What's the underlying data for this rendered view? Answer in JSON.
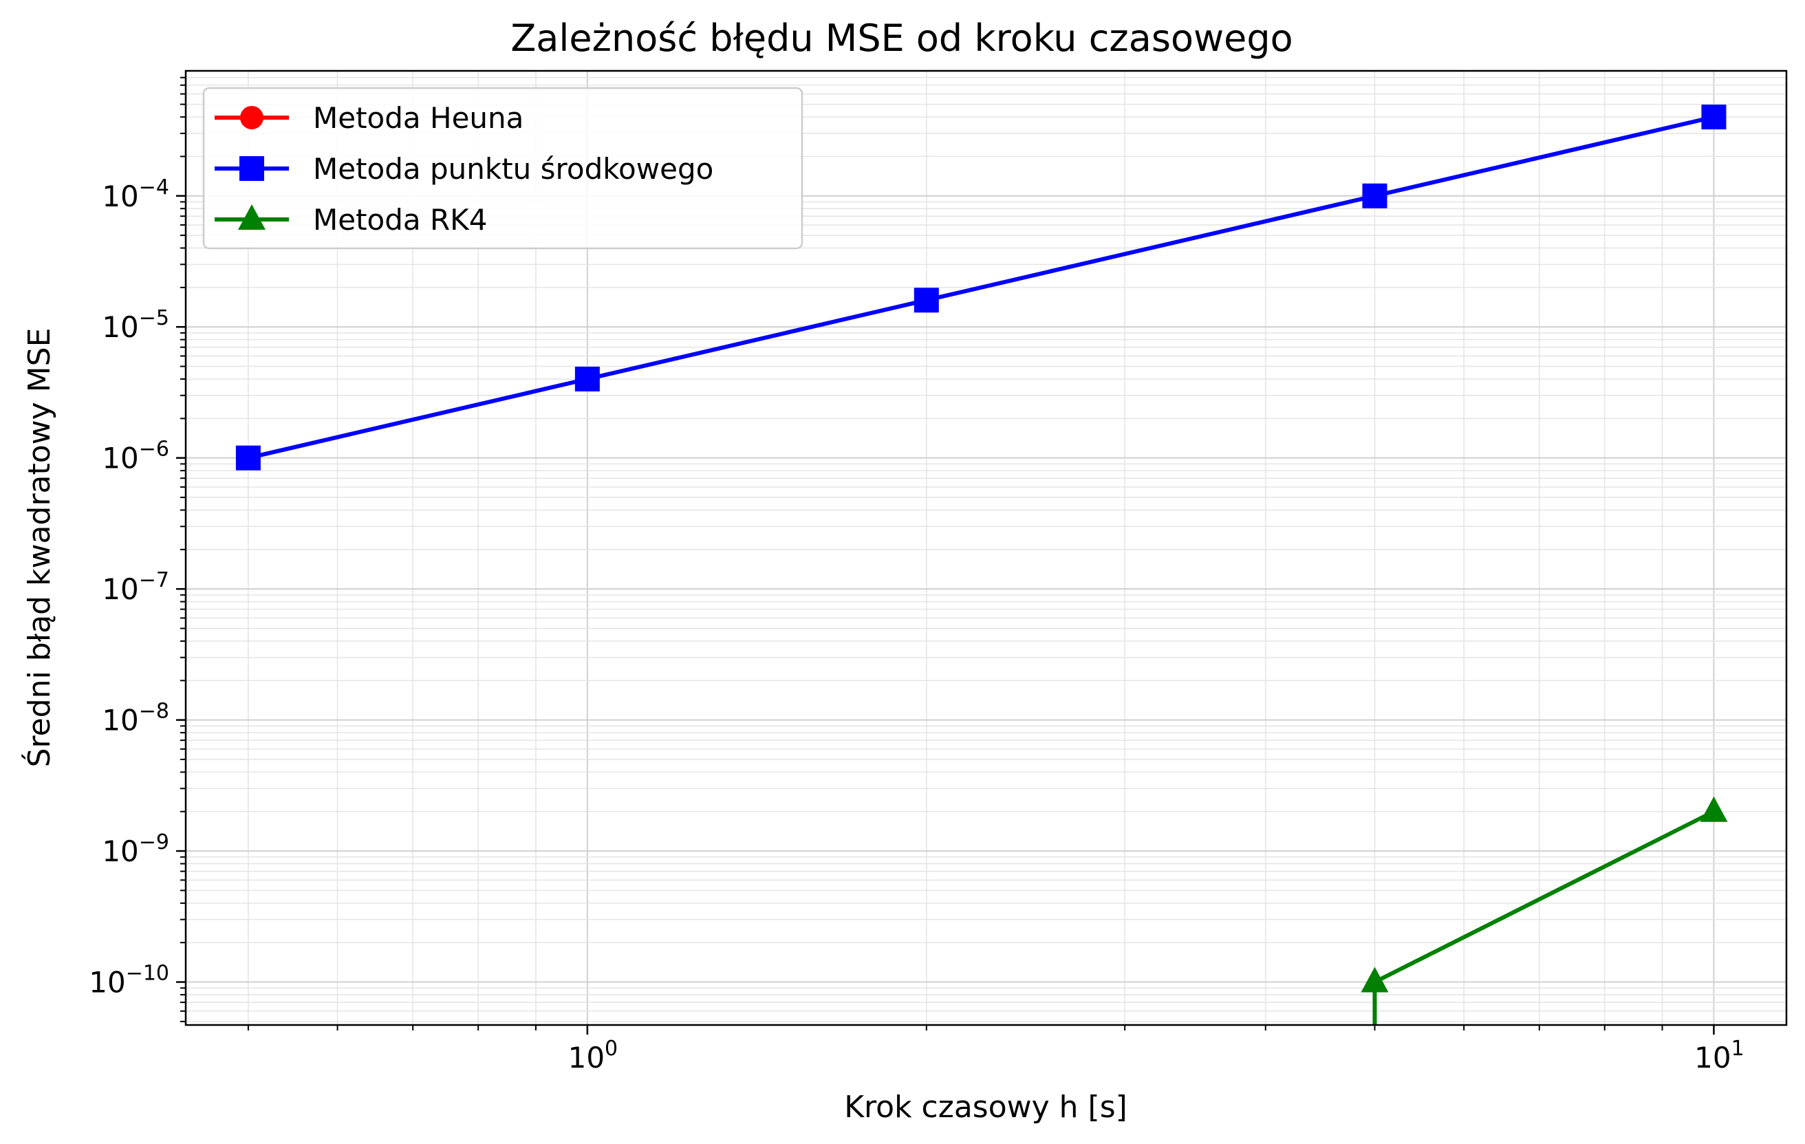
{
  "chart_data": {
    "type": "line",
    "title": "Zależność błędu MSE od kroku czasowego",
    "xlabel": "Krok czasowy h [s]",
    "ylabel": "Średni błąd kwadratowy MSE",
    "xscale": "log",
    "yscale": "log",
    "xlim": [
      0.44,
      11.6
    ],
    "ylim": [
      4.7e-11,
      0.0009
    ],
    "grid": true,
    "legend_position": "top-left",
    "x_ticks": [
      {
        "value": 1,
        "base": "10",
        "exp": "0"
      },
      {
        "value": 10,
        "base": "10",
        "exp": "1"
      }
    ],
    "y_ticks": [
      {
        "value": 0.0001,
        "base": "10",
        "exp": "−4"
      },
      {
        "value": 1e-05,
        "base": "10",
        "exp": "−5"
      },
      {
        "value": 1e-06,
        "base": "10",
        "exp": "−6"
      },
      {
        "value": 1e-07,
        "base": "10",
        "exp": "−7"
      },
      {
        "value": 1e-08,
        "base": "10",
        "exp": "−8"
      },
      {
        "value": 1e-09,
        "base": "10",
        "exp": "−9"
      },
      {
        "value": 1e-10,
        "base": "10",
        "exp": "−10"
      }
    ],
    "series": [
      {
        "name": "Metoda Heuna",
        "color": "#ff0000",
        "marker": "circle",
        "points": []
      },
      {
        "name": "Metoda punktu środkowego",
        "color": "#0000ff",
        "marker": "square",
        "points": [
          [
            0.5,
            1e-06
          ],
          [
            1,
            4e-06
          ],
          [
            2,
            1.6e-05
          ],
          [
            5,
            0.0001
          ],
          [
            10,
            0.0004
          ]
        ]
      },
      {
        "name": "Metoda RK4",
        "color": "#008000",
        "marker": "triangle",
        "points": [
          [
            5,
            1e-10
          ],
          [
            10,
            2e-09
          ]
        ],
        "drop_to_axis_from_first": true
      }
    ]
  }
}
